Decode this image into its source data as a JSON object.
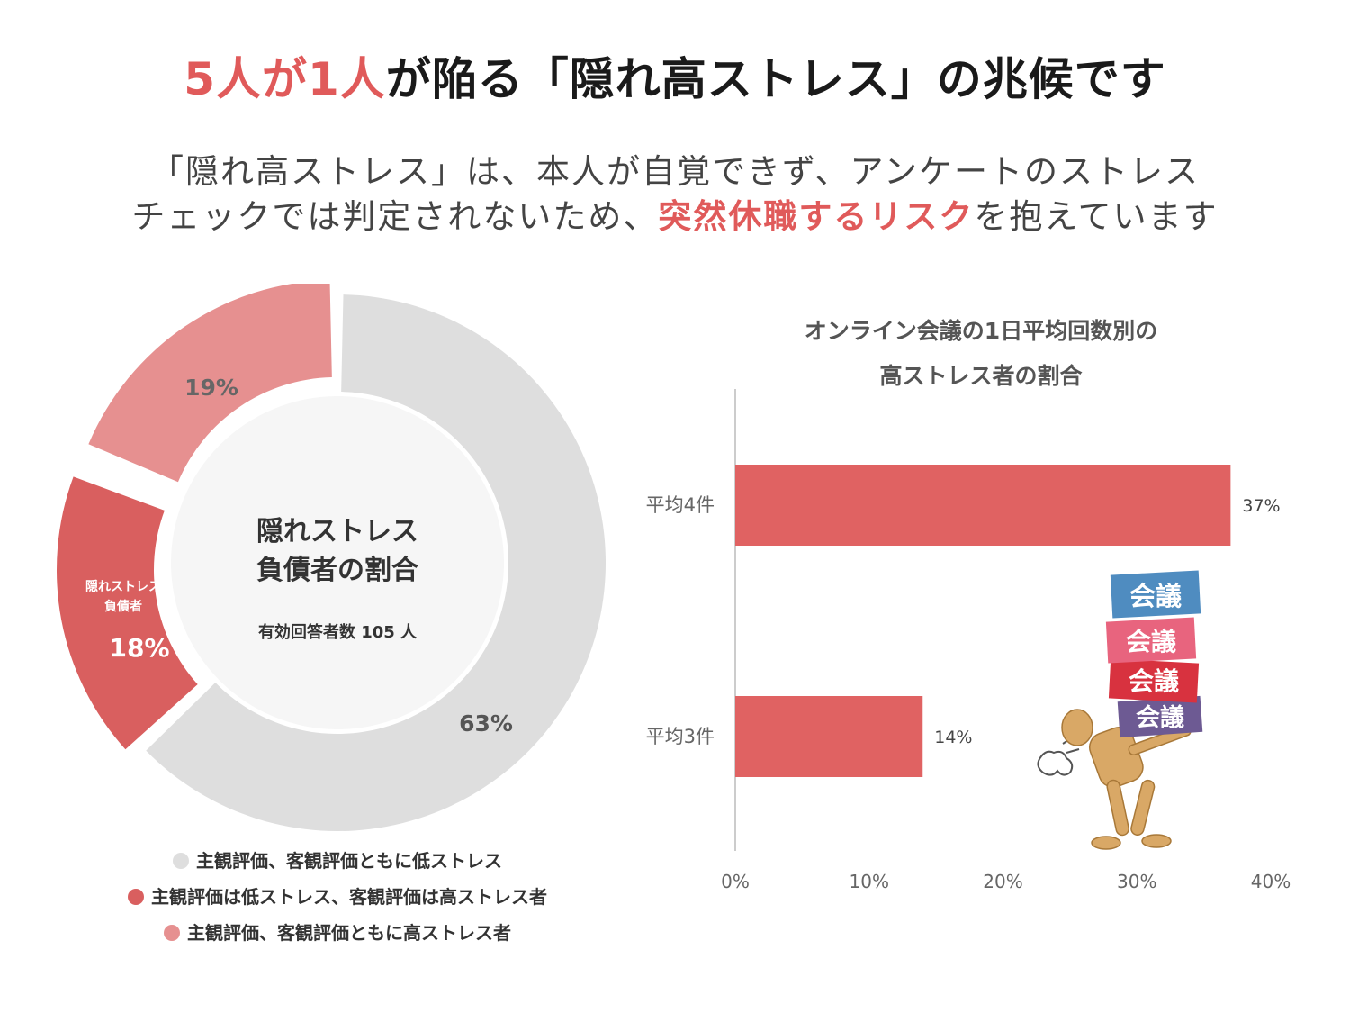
{
  "header": {
    "title_part1": "5人が1人",
    "title_part2": "が陥る「隠れ高ストレス」の兆候です",
    "subtitle_line1": "「隠れ高ストレス」は、本人が自覚できず、アンケートのストレス",
    "subtitle_line2_a": "チェックでは判定されないため、",
    "subtitle_line2_highlight": "突然休職するリスク",
    "subtitle_line2_b": "を抱えています"
  },
  "colors": {
    "accent": "#e05a5a",
    "gray_segment": "#dedede",
    "dark_red_segment": "#d95f5f",
    "light_red_segment": "#e69090",
    "bar": "#e06262"
  },
  "chart_data": [
    {
      "type": "pie",
      "center_title_line1": "隠れストレス",
      "center_title_line2": "負債者の割合",
      "center_note": "有効回答者数 105 人",
      "segment_label_lines": [
        "隠れストレス",
        "負債者"
      ],
      "slices": [
        {
          "name": "主観評価、客観評価ともに低ストレス",
          "value": 63,
          "label": "63%",
          "color": "#dedede"
        },
        {
          "name": "主観評価は低ストレス、客観評価は高ストレス者",
          "value": 18,
          "label": "18%",
          "color": "#d95f5f"
        },
        {
          "name": "主観評価、客観評価ともに高ストレス者",
          "value": 19,
          "label": "19%",
          "color": "#e69090"
        }
      ],
      "legend_position": "bottom"
    },
    {
      "type": "bar",
      "orientation": "horizontal",
      "title_line1": "オンライン会議の1日平均回数別の",
      "title_line2": "高ストレス者の割合",
      "categories": [
        "平均4件",
        "平均3件"
      ],
      "values": [
        37,
        14
      ],
      "value_labels": [
        "37%",
        "14%"
      ],
      "xlim": [
        0,
        40
      ],
      "xticks": [
        "0%",
        "10%",
        "20%",
        "30%",
        "40%"
      ],
      "grid": false
    }
  ],
  "illustration": {
    "box_labels": [
      "会議",
      "会議",
      "会議",
      "会議"
    ]
  }
}
